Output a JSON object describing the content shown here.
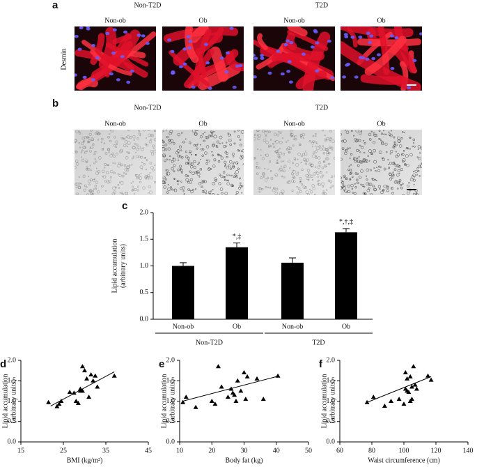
{
  "panels": {
    "a": {
      "label": "a",
      "groups": [
        "Non-T2D",
        "T2D"
      ],
      "images": [
        "Non-ob",
        "Ob",
        "Non-ob",
        "Ob"
      ],
      "stain": "Desmin"
    },
    "b": {
      "label": "b",
      "groups": [
        "Non-T2D",
        "T2D"
      ],
      "images": [
        "Non-ob",
        "Ob",
        "Non-ob",
        "Ob"
      ]
    }
  },
  "chart_data": [
    {
      "type": "bar",
      "panel": "c",
      "ylabel": "Lipid accumulation",
      "ylabel_units": "(arbitrary units)",
      "categories": [
        "Non-ob",
        "Ob",
        "Non-ob",
        "Ob"
      ],
      "groups": [
        "Non-T2D",
        "T2D"
      ],
      "values": [
        1.0,
        1.35,
        1.06,
        1.63
      ],
      "errors": [
        0.06,
        0.08,
        0.09,
        0.07
      ],
      "annotations": [
        null,
        "*,‡",
        null,
        "*,†,‡"
      ],
      "color": "#000000",
      "ylim": [
        0,
        2.0
      ],
      "yticks": [
        {
          "value": 0,
          "label": "0.0"
        },
        {
          "value": 0.5,
          "label": "0.5"
        },
        {
          "value": 1,
          "label": "1.0"
        },
        {
          "value": 1.5,
          "label": "1.5"
        },
        {
          "value": 2,
          "label": "2.0"
        }
      ]
    },
    {
      "type": "scatter",
      "panel": "d",
      "xlabel": "BMI (kg/m²)",
      "ylabel": "Lipid accumulation",
      "ylabel_units": "(arbitrary units)",
      "color": "#000000",
      "x": [
        21.5,
        23.5,
        24,
        24.5,
        26.5,
        27.5,
        28,
        28.5,
        29,
        29,
        29.5,
        29.5,
        30,
        30.5,
        31,
        31.5,
        32,
        32.5,
        33,
        37
      ],
      "values": [
        0.97,
        0.87,
        0.93,
        1.0,
        1.22,
        1.2,
        1.0,
        0.95,
        1.25,
        1.3,
        1.25,
        1.85,
        1.75,
        1.55,
        1.1,
        1.65,
        1.5,
        1.62,
        1.35,
        1.62
      ],
      "trendline": {
        "x": [
          22,
          37
        ],
        "values": [
          0.88,
          1.72
        ]
      },
      "xlim": [
        15,
        45
      ],
      "xticks": [
        15,
        25,
        35,
        45
      ],
      "ylim": [
        0,
        2.0
      ],
      "yticks": [
        {
          "value": 0,
          "label": "0.0"
        },
        {
          "value": 0.5,
          "label": "0.5"
        },
        {
          "value": 1,
          "label": "1.0"
        },
        {
          "value": 1.5,
          "label": "1.5"
        },
        {
          "value": 2,
          "label": "2.0"
        }
      ]
    },
    {
      "type": "scatter",
      "panel": "e",
      "xlabel": "Body fat (kg)",
      "ylabel": "Lipid accumulation",
      "ylabel_units": "(arbitrary units)",
      "color": "#000000",
      "x": [
        11,
        12,
        15,
        20,
        21,
        22,
        23,
        25,
        26,
        26.5,
        27,
        27.5,
        28,
        29,
        30,
        30.5,
        31,
        34,
        36,
        40.5
      ],
      "values": [
        0.97,
        1.1,
        0.85,
        1.0,
        0.93,
        1.85,
        1.35,
        1.1,
        1.3,
        1.2,
        1.15,
        1.0,
        1.5,
        1.25,
        1.7,
        1.05,
        1.6,
        1.55,
        1.05,
        1.62
      ],
      "trendline": {
        "x": [
          11,
          40
        ],
        "values": [
          1.0,
          1.6
        ]
      },
      "xlim": [
        10,
        50
      ],
      "xticks": [
        10,
        20,
        30,
        40,
        50
      ],
      "ylim": [
        0,
        2.0
      ],
      "yticks": [
        {
          "value": 0,
          "label": "0.0"
        },
        {
          "value": 0.5,
          "label": "0.5"
        },
        {
          "value": 1,
          "label": "1.0"
        },
        {
          "value": 1.5,
          "label": "1.5"
        },
        {
          "value": 2,
          "label": "2.0"
        }
      ]
    },
    {
      "type": "scatter",
      "panel": "f",
      "xlabel": "Waist circumference (cm)",
      "ylabel": "Lipid accumulation",
      "ylabel_units": "(arbitrary units)",
      "color": "#000000",
      "x": [
        77,
        81,
        88,
        92,
        97,
        100,
        101,
        101,
        102,
        102,
        103,
        104,
        104,
        105,
        106,
        107,
        108,
        115,
        117,
        105
      ],
      "values": [
        0.97,
        1.1,
        0.88,
        1.0,
        1.05,
        0.93,
        1.7,
        1.3,
        1.25,
        1.55,
        1.22,
        1.0,
        1.6,
        1.35,
        1.85,
        1.4,
        1.3,
        1.62,
        1.52,
        1.05
      ],
      "trendline": {
        "x": [
          77,
          117
        ],
        "values": [
          0.97,
          1.6
        ]
      },
      "xlim": [
        60,
        140
      ],
      "xticks": [
        60,
        80,
        100,
        120,
        140
      ],
      "ylim": [
        0,
        2.0
      ],
      "yticks": [
        {
          "value": 0,
          "label": "0.0"
        },
        {
          "value": 0.5,
          "label": "0.5"
        },
        {
          "value": 1,
          "label": "1.0"
        },
        {
          "value": 1.5,
          "label": "1.5"
        },
        {
          "value": 2,
          "label": "2.0"
        }
      ]
    }
  ]
}
